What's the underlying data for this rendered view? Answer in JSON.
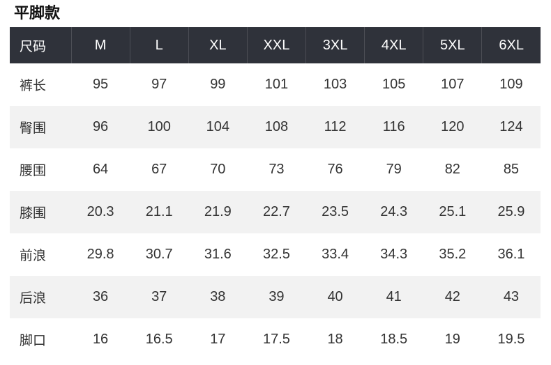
{
  "chart_data": {
    "type": "table",
    "title": "平脚款",
    "columns": [
      "尺码",
      "M",
      "L",
      "XL",
      "XXL",
      "3XL",
      "4XL",
      "5XL",
      "6XL"
    ],
    "rows": [
      [
        "裤长",
        95,
        97,
        99,
        101,
        103,
        105,
        107,
        109
      ],
      [
        "臀围",
        96,
        100,
        104,
        108,
        112,
        116,
        120,
        124
      ],
      [
        "腰围",
        64,
        67,
        70,
        73,
        76,
        79,
        82,
        85
      ],
      [
        "膝围",
        20.3,
        21.1,
        21.9,
        22.7,
        23.5,
        24.3,
        25.1,
        25.9
      ],
      [
        "前浪",
        29.8,
        30.7,
        31.6,
        32.5,
        33.4,
        34.3,
        35.2,
        36.1
      ],
      [
        "后浪",
        36,
        37,
        38,
        39,
        40,
        41,
        42,
        43
      ],
      [
        "脚口",
        16,
        16.5,
        17,
        17.5,
        18,
        18.5,
        19,
        19.5
      ]
    ],
    "layout": {
      "header_row": true,
      "zebra_striping": true,
      "first_column_is_labels": true
    }
  },
  "colors": {
    "header_bg": "#2f323a",
    "header_text": "#ffffff",
    "stripe_bg": "#f2f2f2",
    "row_bg": "#ffffff",
    "body_text": "#333333",
    "title_text": "#111111"
  }
}
